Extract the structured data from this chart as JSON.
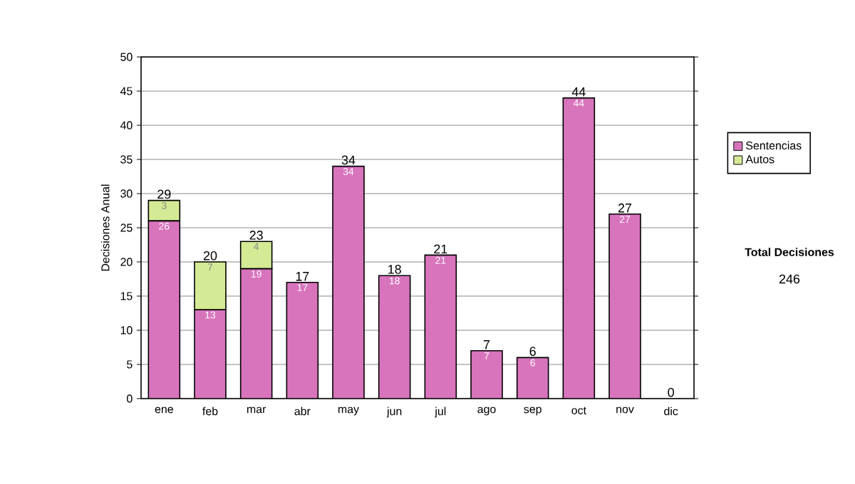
{
  "chart_data": {
    "type": "bar",
    "stacked": true,
    "ylabel": "Decisiones Anual",
    "categories": [
      "ene",
      "feb",
      "mar",
      "abr",
      "may",
      "jun",
      "jul",
      "ago",
      "sep",
      "oct",
      "nov",
      "dic"
    ],
    "series": [
      {
        "name": "Sentencias",
        "color": "#d874bc",
        "values": [
          26,
          13,
          19,
          17,
          34,
          18,
          21,
          7,
          6,
          44,
          27,
          0
        ],
        "value_labels": [
          "26",
          "13",
          "19",
          "17",
          "34",
          "18",
          "21",
          "7",
          "6",
          "44",
          "27",
          null
        ]
      },
      {
        "name": "Autos",
        "color": "#d4ea94",
        "values": [
          3,
          7,
          4,
          0,
          0,
          0,
          0,
          0,
          0,
          0,
          0,
          0
        ],
        "value_labels": [
          "3",
          "7",
          "4",
          null,
          null,
          null,
          null,
          null,
          null,
          null,
          null,
          null
        ]
      }
    ],
    "totals": [
      "29",
      "20",
      "23",
      "17",
      "34",
      "18",
      "21",
      "7",
      "6",
      "44",
      "27",
      "0"
    ],
    "ylim": [
      0,
      50
    ],
    "yticks": [
      0,
      5,
      10,
      15,
      20,
      25,
      30,
      35,
      40,
      45,
      50
    ],
    "grid": "y",
    "legend": "right",
    "annotations": [
      "Total Decisiones",
      "246"
    ]
  }
}
